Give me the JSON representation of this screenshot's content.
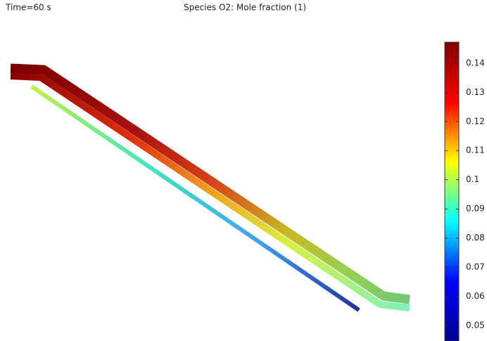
{
  "chart_data": {
    "type": "surface",
    "title": "Species O2:  Mole fraction (1)",
    "annotation": "Time=60 s",
    "colormap": "jet",
    "clim": [
      0.0447,
      0.1472
    ],
    "cticks": [
      0.05,
      0.06,
      0.07,
      0.08,
      0.09,
      0.1,
      0.11,
      0.12,
      0.13,
      0.14
    ]
  }
}
